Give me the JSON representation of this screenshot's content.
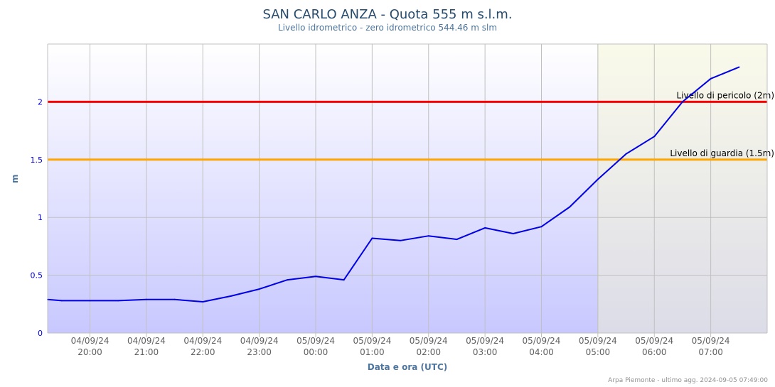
{
  "chart_data": {
    "type": "line",
    "title": "SAN CARLO ANZA - Quota 555 m s.l.m.",
    "subtitle": "Livello idrometrico - zero idrometrico 544.46 m slm",
    "xlabel": "Data e ora (UTC)",
    "ylabel": "m",
    "ylim": [
      0,
      2.5
    ],
    "xlim_hours": [
      -0.75,
      12.0
    ],
    "y_ticks": [
      "0",
      "0.5",
      "1",
      "1.5",
      "2"
    ],
    "x_ticks": [
      {
        "date": "04/09/24",
        "time": "20:00"
      },
      {
        "date": "04/09/24",
        "time": "21:00"
      },
      {
        "date": "04/09/24",
        "time": "22:00"
      },
      {
        "date": "04/09/24",
        "time": "23:00"
      },
      {
        "date": "05/09/24",
        "time": "00:00"
      },
      {
        "date": "05/09/24",
        "time": "01:00"
      },
      {
        "date": "05/09/24",
        "time": "02:00"
      },
      {
        "date": "05/09/24",
        "time": "03:00"
      },
      {
        "date": "05/09/24",
        "time": "04:00"
      },
      {
        "date": "05/09/24",
        "time": "05:00"
      },
      {
        "date": "05/09/24",
        "time": "06:00"
      },
      {
        "date": "05/09/24",
        "time": "07:00"
      }
    ],
    "series": [
      {
        "color": "#0000e6",
        "x": [
          "04/09/24 19:15",
          "04/09/24 19:30",
          "04/09/24 20:00",
          "04/09/24 20:30",
          "04/09/24 21:00",
          "04/09/24 21:30",
          "04/09/24 22:00",
          "04/09/24 22:30",
          "04/09/24 23:00",
          "04/09/24 23:30",
          "05/09/24 00:00",
          "05/09/24 00:30",
          "05/09/24 01:00",
          "05/09/24 01:30",
          "05/09/24 02:00",
          "05/09/24 02:30",
          "05/09/24 03:00",
          "05/09/24 03:30",
          "05/09/24 04:00",
          "05/09/24 04:30",
          "05/09/24 05:00",
          "05/09/24 05:30",
          "05/09/24 06:00",
          "05/09/24 06:30",
          "05/09/24 07:00",
          "05/09/24 07:30"
        ],
        "values": [
          0.29,
          0.28,
          0.28,
          0.28,
          0.29,
          0.29,
          0.27,
          0.32,
          0.38,
          0.46,
          0.49,
          0.46,
          0.82,
          0.8,
          0.84,
          0.81,
          0.91,
          0.86,
          0.92,
          1.09,
          1.33,
          1.55,
          1.7,
          2.0,
          2.2,
          2.3
        ]
      }
    ],
    "thresholds": [
      {
        "label": "Livello di pericolo (2m)",
        "value": 2.0,
        "color": "#ff0000"
      },
      {
        "label": "Livello di guardia (1.5m)",
        "value": 1.5,
        "color": "#ffa500"
      }
    ],
    "shaded_band_from": "05/09/24 05:00",
    "grid": true,
    "legend": "none"
  },
  "credits": "Arpa Piemonte - ultimo agg. 2024-09-05 07:49:00",
  "colors": {
    "grid": "#c0c0c0",
    "axis_text": "#0000e6",
    "tick_text": "#606060",
    "band_fill": "#f0f0d8"
  }
}
